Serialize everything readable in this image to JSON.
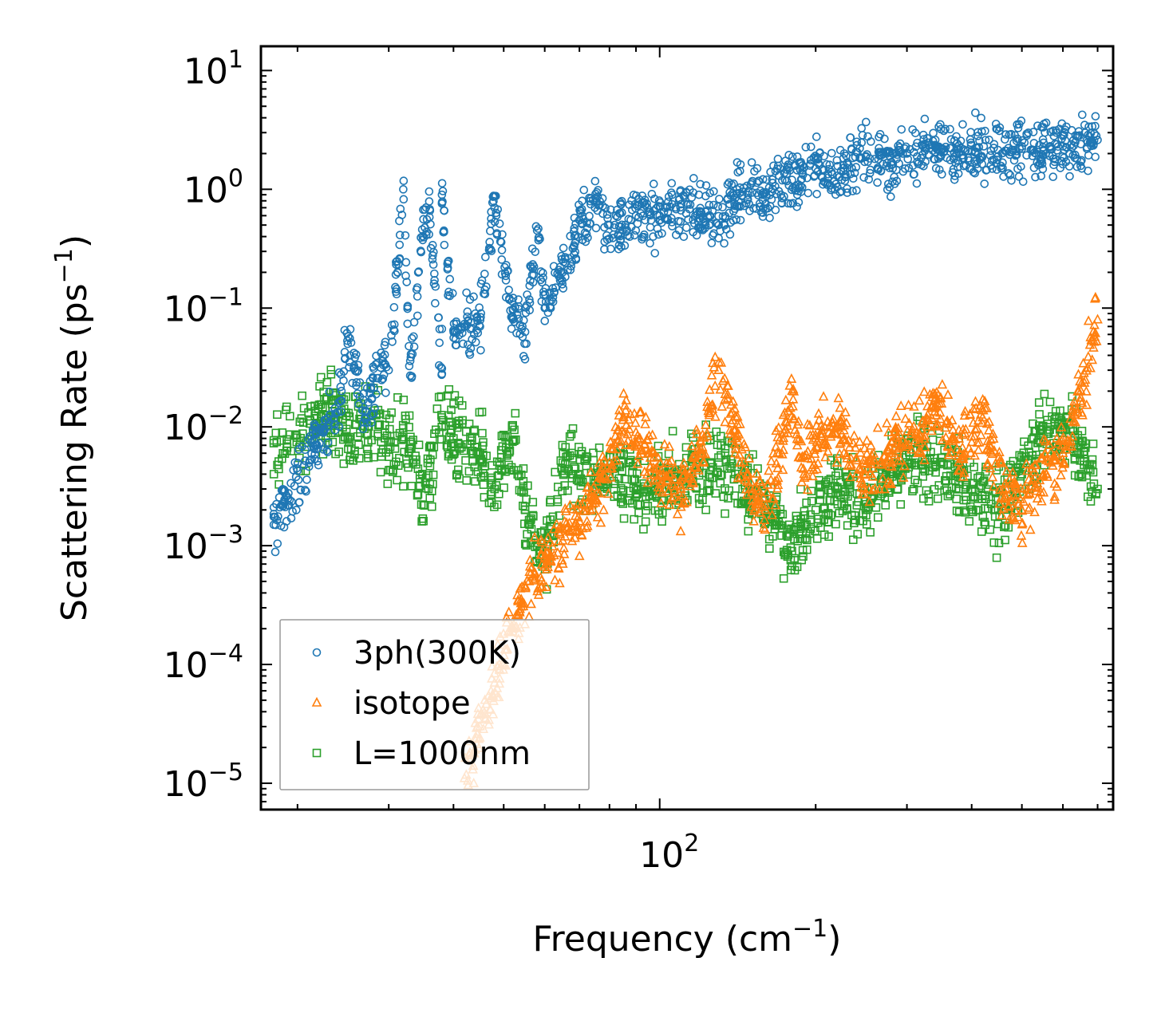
{
  "chart_data": {
    "type": "scatter",
    "xlabel": "Frequency (cm",
    "xlabel_sup": "−1",
    "xlabel_close": ")",
    "ylabel": "Scattering Rate (ps",
    "ylabel_sup": "−1",
    "ylabel_close": ")",
    "xscale": "log",
    "yscale": "log",
    "xlim": [
      17,
      750
    ],
    "ylim": [
      6e-06,
      16
    ],
    "x_ticks": [
      {
        "value": 100,
        "base": "10",
        "exp": "2"
      }
    ],
    "y_ticks": [
      {
        "value": 10,
        "base": "10",
        "exp": "1"
      },
      {
        "value": 1,
        "base": "10",
        "exp": "0"
      },
      {
        "value": 0.1,
        "base": "10",
        "exp": "−1"
      },
      {
        "value": 0.01,
        "base": "10",
        "exp": "−2"
      },
      {
        "value": 0.001,
        "base": "10",
        "exp": "−3"
      },
      {
        "value": 0.0001,
        "base": "10",
        "exp": "−4"
      },
      {
        "value": 1e-05,
        "base": "10",
        "exp": "−5"
      }
    ],
    "legend": {
      "position": "lower-left"
    },
    "series": [
      {
        "name": "3ph(300K)",
        "marker": "circle",
        "color": "#1f77b4",
        "anchors": [
          [
            18,
            0.0021
          ],
          [
            18,
            0.0015
          ],
          [
            24,
            0.016
          ],
          [
            25,
            0.05
          ],
          [
            27,
            0.012
          ],
          [
            29,
            0.042
          ],
          [
            30,
            0.03
          ],
          [
            32,
            1.0
          ],
          [
            33,
            0.027
          ],
          [
            35,
            0.56
          ],
          [
            36,
            0.68
          ],
          [
            38,
            0.028
          ],
          [
            38,
            0.9
          ],
          [
            40,
            0.065
          ],
          [
            42,
            0.07
          ],
          [
            45,
            0.07
          ],
          [
            48,
            0.7
          ],
          [
            52,
            0.085
          ],
          [
            55,
            0.063
          ],
          [
            58,
            0.45
          ],
          [
            60,
            0.1
          ],
          [
            65,
            0.2
          ],
          [
            70,
            0.55
          ],
          [
            75,
            0.7
          ],
          [
            80,
            0.5
          ],
          [
            90,
            0.6
          ],
          [
            100,
            0.6
          ],
          [
            110,
            0.75
          ],
          [
            120,
            0.65
          ],
          [
            130,
            0.5
          ],
          [
            140,
            0.85
          ],
          [
            150,
            1.1
          ],
          [
            160,
            0.75
          ],
          [
            170,
            1.3
          ],
          [
            180,
            1.2
          ],
          [
            200,
            1.5
          ],
          [
            220,
            1.3
          ],
          [
            250,
            1.9
          ],
          [
            280,
            1.6
          ],
          [
            300,
            2.0
          ],
          [
            350,
            2.2
          ],
          [
            400,
            2.1
          ],
          [
            450,
            1.9
          ],
          [
            500,
            2.3
          ],
          [
            550,
            2.1
          ],
          [
            600,
            2.3
          ],
          [
            650,
            2.4
          ],
          [
            700,
            2.6
          ]
        ],
        "spread": 0.35
      },
      {
        "name": "isotope",
        "marker": "triangle",
        "color": "#ff7f0e",
        "anchors": [
          [
            42,
            1.1e-05
          ],
          [
            45,
            3e-05
          ],
          [
            48,
            7e-05
          ],
          [
            52,
            0.0002
          ],
          [
            56,
            0.0005
          ],
          [
            60,
            0.0008
          ],
          [
            65,
            0.0011
          ],
          [
            70,
            0.0016
          ],
          [
            75,
            0.0025
          ],
          [
            80,
            0.005
          ],
          [
            85,
            0.012
          ],
          [
            90,
            0.009
          ],
          [
            95,
            0.006
          ],
          [
            100,
            0.004
          ],
          [
            110,
            0.003
          ],
          [
            120,
            0.006
          ],
          [
            130,
            0.03
          ],
          [
            140,
            0.008
          ],
          [
            150,
            0.003
          ],
          [
            160,
            0.002
          ],
          [
            170,
            0.006
          ],
          [
            180,
            0.02
          ],
          [
            190,
            0.004
          ],
          [
            200,
            0.008
          ],
          [
            220,
            0.01
          ],
          [
            250,
            0.004
          ],
          [
            280,
            0.006
          ],
          [
            300,
            0.007
          ],
          [
            340,
            0.015
          ],
          [
            380,
            0.006
          ],
          [
            420,
            0.012
          ],
          [
            460,
            0.003
          ],
          [
            500,
            0.002
          ],
          [
            550,
            0.004
          ],
          [
            600,
            0.006
          ],
          [
            650,
            0.02
          ],
          [
            700,
            0.08
          ]
        ],
        "spread": 0.4
      },
      {
        "name": "L=1000nm",
        "marker": "square",
        "color": "#2ca02c",
        "anchors": [
          [
            18,
            0.0077
          ],
          [
            24,
            0.013
          ],
          [
            25,
            0.008
          ],
          [
            27,
            0.011
          ],
          [
            30,
            0.0075
          ],
          [
            33,
            0.0075
          ],
          [
            35,
            0.0022
          ],
          [
            38,
            0.012
          ],
          [
            40,
            0.008
          ],
          [
            45,
            0.006
          ],
          [
            48,
            0.003
          ],
          [
            52,
            0.0075
          ],
          [
            55,
            0.002
          ],
          [
            58,
            0.001
          ],
          [
            60,
            0.0007
          ],
          [
            65,
            0.005
          ],
          [
            70,
            0.004
          ],
          [
            80,
            0.004
          ],
          [
            90,
            0.003
          ],
          [
            100,
            0.003
          ],
          [
            110,
            0.004
          ],
          [
            130,
            0.005
          ],
          [
            150,
            0.003
          ],
          [
            170,
            0.0015
          ],
          [
            180,
            0.0009
          ],
          [
            200,
            0.002
          ],
          [
            220,
            0.003
          ],
          [
            250,
            0.002
          ],
          [
            280,
            0.004
          ],
          [
            300,
            0.005
          ],
          [
            350,
            0.005
          ],
          [
            400,
            0.003
          ],
          [
            450,
            0.002
          ],
          [
            500,
            0.004
          ],
          [
            550,
            0.008
          ],
          [
            600,
            0.01
          ],
          [
            650,
            0.007
          ],
          [
            700,
            0.003
          ]
        ],
        "spread": 0.45
      }
    ]
  }
}
